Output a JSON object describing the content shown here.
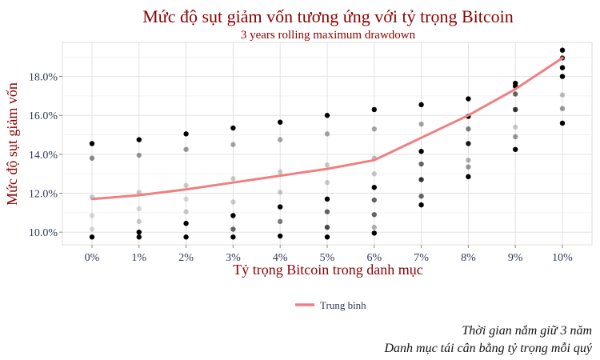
{
  "chart_data": {
    "type": "scatter",
    "title": "Mức độ sụt giảm vốn tương ứng với tỷ trọng Bitcoin",
    "subtitle": "3 years rolling maximum drawdown",
    "xlabel": "Tỷ trọng Bitcoin trong danh mục",
    "ylabel": "Mức độ sụt giảm vốn",
    "categories": [
      "0%",
      "1%",
      "2%",
      "3%",
      "4%",
      "5%",
      "6%",
      "7%",
      "8%",
      "9%",
      "10%"
    ],
    "x_values": [
      0,
      1,
      2,
      3,
      4,
      5,
      6,
      7,
      8,
      9,
      10
    ],
    "ylim": [
      9.35,
      19.75
    ],
    "y_ticks": [
      10.0,
      12.0,
      14.0,
      16.0,
      18.0
    ],
    "y_tick_labels": [
      "10.0%",
      "12.0%",
      "14.0%",
      "16.0%",
      "18.0%"
    ],
    "grid": true,
    "legend_position": "bottom",
    "series": [
      {
        "name": "Trung bình",
        "type": "line",
        "color": "#F08080",
        "values": [
          11.7,
          11.9,
          12.2,
          12.55,
          12.9,
          13.25,
          13.7,
          14.85,
          16.0,
          17.35,
          18.95
        ]
      }
    ],
    "points": [
      {
        "x": 0,
        "ys": [
          14.55,
          13.8,
          11.8,
          10.85,
          10.15,
          9.75
        ],
        "shades": [
          1.0,
          0.45,
          0.2,
          0.15,
          0.15,
          1.0
        ]
      },
      {
        "x": 1,
        "ys": [
          14.75,
          13.95,
          12.05,
          11.2,
          10.55,
          10.0,
          9.75
        ],
        "shades": [
          1.0,
          0.4,
          0.2,
          0.15,
          0.2,
          1.0,
          1.0
        ]
      },
      {
        "x": 2,
        "ys": [
          15.05,
          14.25,
          12.4,
          11.7,
          11.05,
          10.45,
          9.75
        ],
        "shades": [
          1.0,
          0.4,
          0.2,
          0.15,
          0.2,
          1.0,
          1.0
        ]
      },
      {
        "x": 3,
        "ys": [
          15.35,
          14.5,
          12.75,
          11.55,
          10.85,
          10.15,
          9.75
        ],
        "shades": [
          1.0,
          0.35,
          0.2,
          0.2,
          1.0,
          0.6,
          1.0
        ]
      },
      {
        "x": 4,
        "ys": [
          15.65,
          14.75,
          13.1,
          12.05,
          11.3,
          10.55,
          9.8
        ],
        "shades": [
          1.0,
          0.35,
          0.2,
          0.2,
          1.0,
          0.5,
          1.0
        ]
      },
      {
        "x": 5,
        "ys": [
          16.0,
          15.05,
          13.45,
          12.55,
          11.7,
          11.05,
          10.25,
          9.75
        ],
        "shades": [
          1.0,
          0.35,
          0.2,
          0.2,
          1.0,
          0.6,
          0.7,
          1.0
        ]
      },
      {
        "x": 6,
        "ys": [
          16.3,
          15.3,
          13.8,
          13.0,
          12.3,
          11.65,
          10.9,
          10.25,
          9.95
        ],
        "shades": [
          1.0,
          0.35,
          0.25,
          0.2,
          1.0,
          0.6,
          0.6,
          0.3,
          1.0
        ]
      },
      {
        "x": 7,
        "ys": [
          16.55,
          15.55,
          14.15,
          13.5,
          12.7,
          11.85,
          11.4
        ],
        "shades": [
          1.0,
          0.35,
          1.0,
          0.6,
          0.8,
          0.6,
          1.0
        ]
      },
      {
        "x": 8,
        "ys": [
          16.85,
          15.95,
          15.3,
          14.55,
          13.7,
          13.35,
          12.85
        ],
        "shades": [
          1.0,
          1.0,
          0.5,
          0.9,
          0.3,
          0.4,
          1.0
        ]
      },
      {
        "x": 9,
        "ys": [
          17.65,
          17.5,
          17.1,
          16.3,
          15.4,
          14.9,
          14.25
        ],
        "shades": [
          1.0,
          1.0,
          0.6,
          0.8,
          0.2,
          0.4,
          1.0
        ]
      },
      {
        "x": 10,
        "ys": [
          19.35,
          18.95,
          18.45,
          18.0,
          17.05,
          16.35,
          15.6
        ],
        "shades": [
          1.0,
          0.8,
          1.0,
          1.0,
          0.25,
          0.4,
          1.0
        ]
      }
    ],
    "caption": [
      "Thời gian nắm giữ 3 năm",
      "Danh mục tái cân bằng tỷ trọng mỗi quý"
    ]
  }
}
